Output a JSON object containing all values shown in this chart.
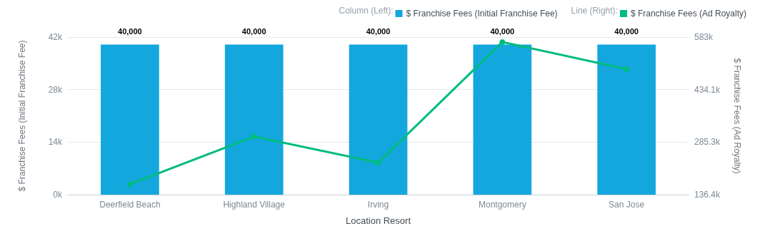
{
  "chart_data": {
    "type": "bar",
    "xlabel": "Location Resort",
    "ylabel": "$ Franchise Fees (Initial Franchise Fee)",
    "y2label": "$ Franchise Fees (Ad Royalty)",
    "categories": [
      "Deerfield Beach",
      "Highland Village",
      "Irving",
      "Montgomery",
      "San Jose"
    ],
    "series": [
      {
        "name": "$ Franchise Fees (Initial Franchise Fee)",
        "color": "#14a7de",
        "values": [
          40000,
          40000,
          40000,
          40000,
          40000
        ],
        "value_labels": [
          "40,000",
          "40,000",
          "40,000",
          "40,000",
          "40,000"
        ]
      },
      {
        "name": "$ Franchise Fees (Ad Royalty)",
        "type": "line",
        "axis": "y2",
        "color": "#00bc7e",
        "values": [
          166000,
          301000,
          227000,
          569000,
          492000
        ]
      }
    ],
    "ylim": [
      0,
      42000
    ],
    "yticks": [
      {
        "value": 0,
        "label": "0k"
      },
      {
        "value": 14000,
        "label": "14k"
      },
      {
        "value": 28000,
        "label": "28k"
      },
      {
        "value": 42000,
        "label": "42k"
      }
    ],
    "y2lim": [
      136400,
      583000
    ],
    "y2ticks": [
      {
        "value": 136400,
        "label": "136.4k"
      },
      {
        "value": 285300,
        "label": "285.3k"
      },
      {
        "value": 434100,
        "label": "434.1k"
      },
      {
        "value": 583000,
        "label": "583k"
      }
    ],
    "legend_title": [
      "Column (Left):",
      "Line (Right):"
    ],
    "legend": "top right",
    "grid": "y",
    "marker": "circle"
  }
}
